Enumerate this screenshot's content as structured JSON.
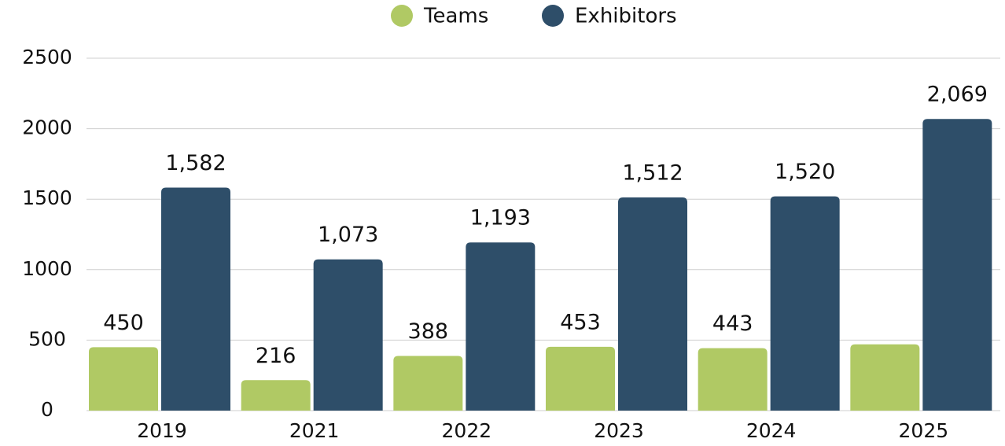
{
  "chart_data": {
    "type": "bar",
    "categories": [
      "2019",
      "2021",
      "2022",
      "2023",
      "2024",
      "2025"
    ],
    "series": [
      {
        "name": "Teams",
        "color": "#b0c964",
        "values": [
          450,
          216,
          388,
          453,
          443,
          470
        ],
        "value_labels": [
          "450",
          "216",
          "388",
          "453",
          "443",
          null
        ]
      },
      {
        "name": "Exhibitors",
        "color": "#2e4e69",
        "values": [
          1582,
          1073,
          1193,
          1512,
          1520,
          2069
        ],
        "value_labels": [
          "1,582",
          "1,073",
          "1,193",
          "1,512",
          "1,520",
          "2,069"
        ]
      }
    ],
    "ylim": [
      0,
      2500
    ],
    "yticks": [
      0,
      500,
      1000,
      1500,
      2000,
      2500
    ],
    "grid": true,
    "legend": "top"
  }
}
